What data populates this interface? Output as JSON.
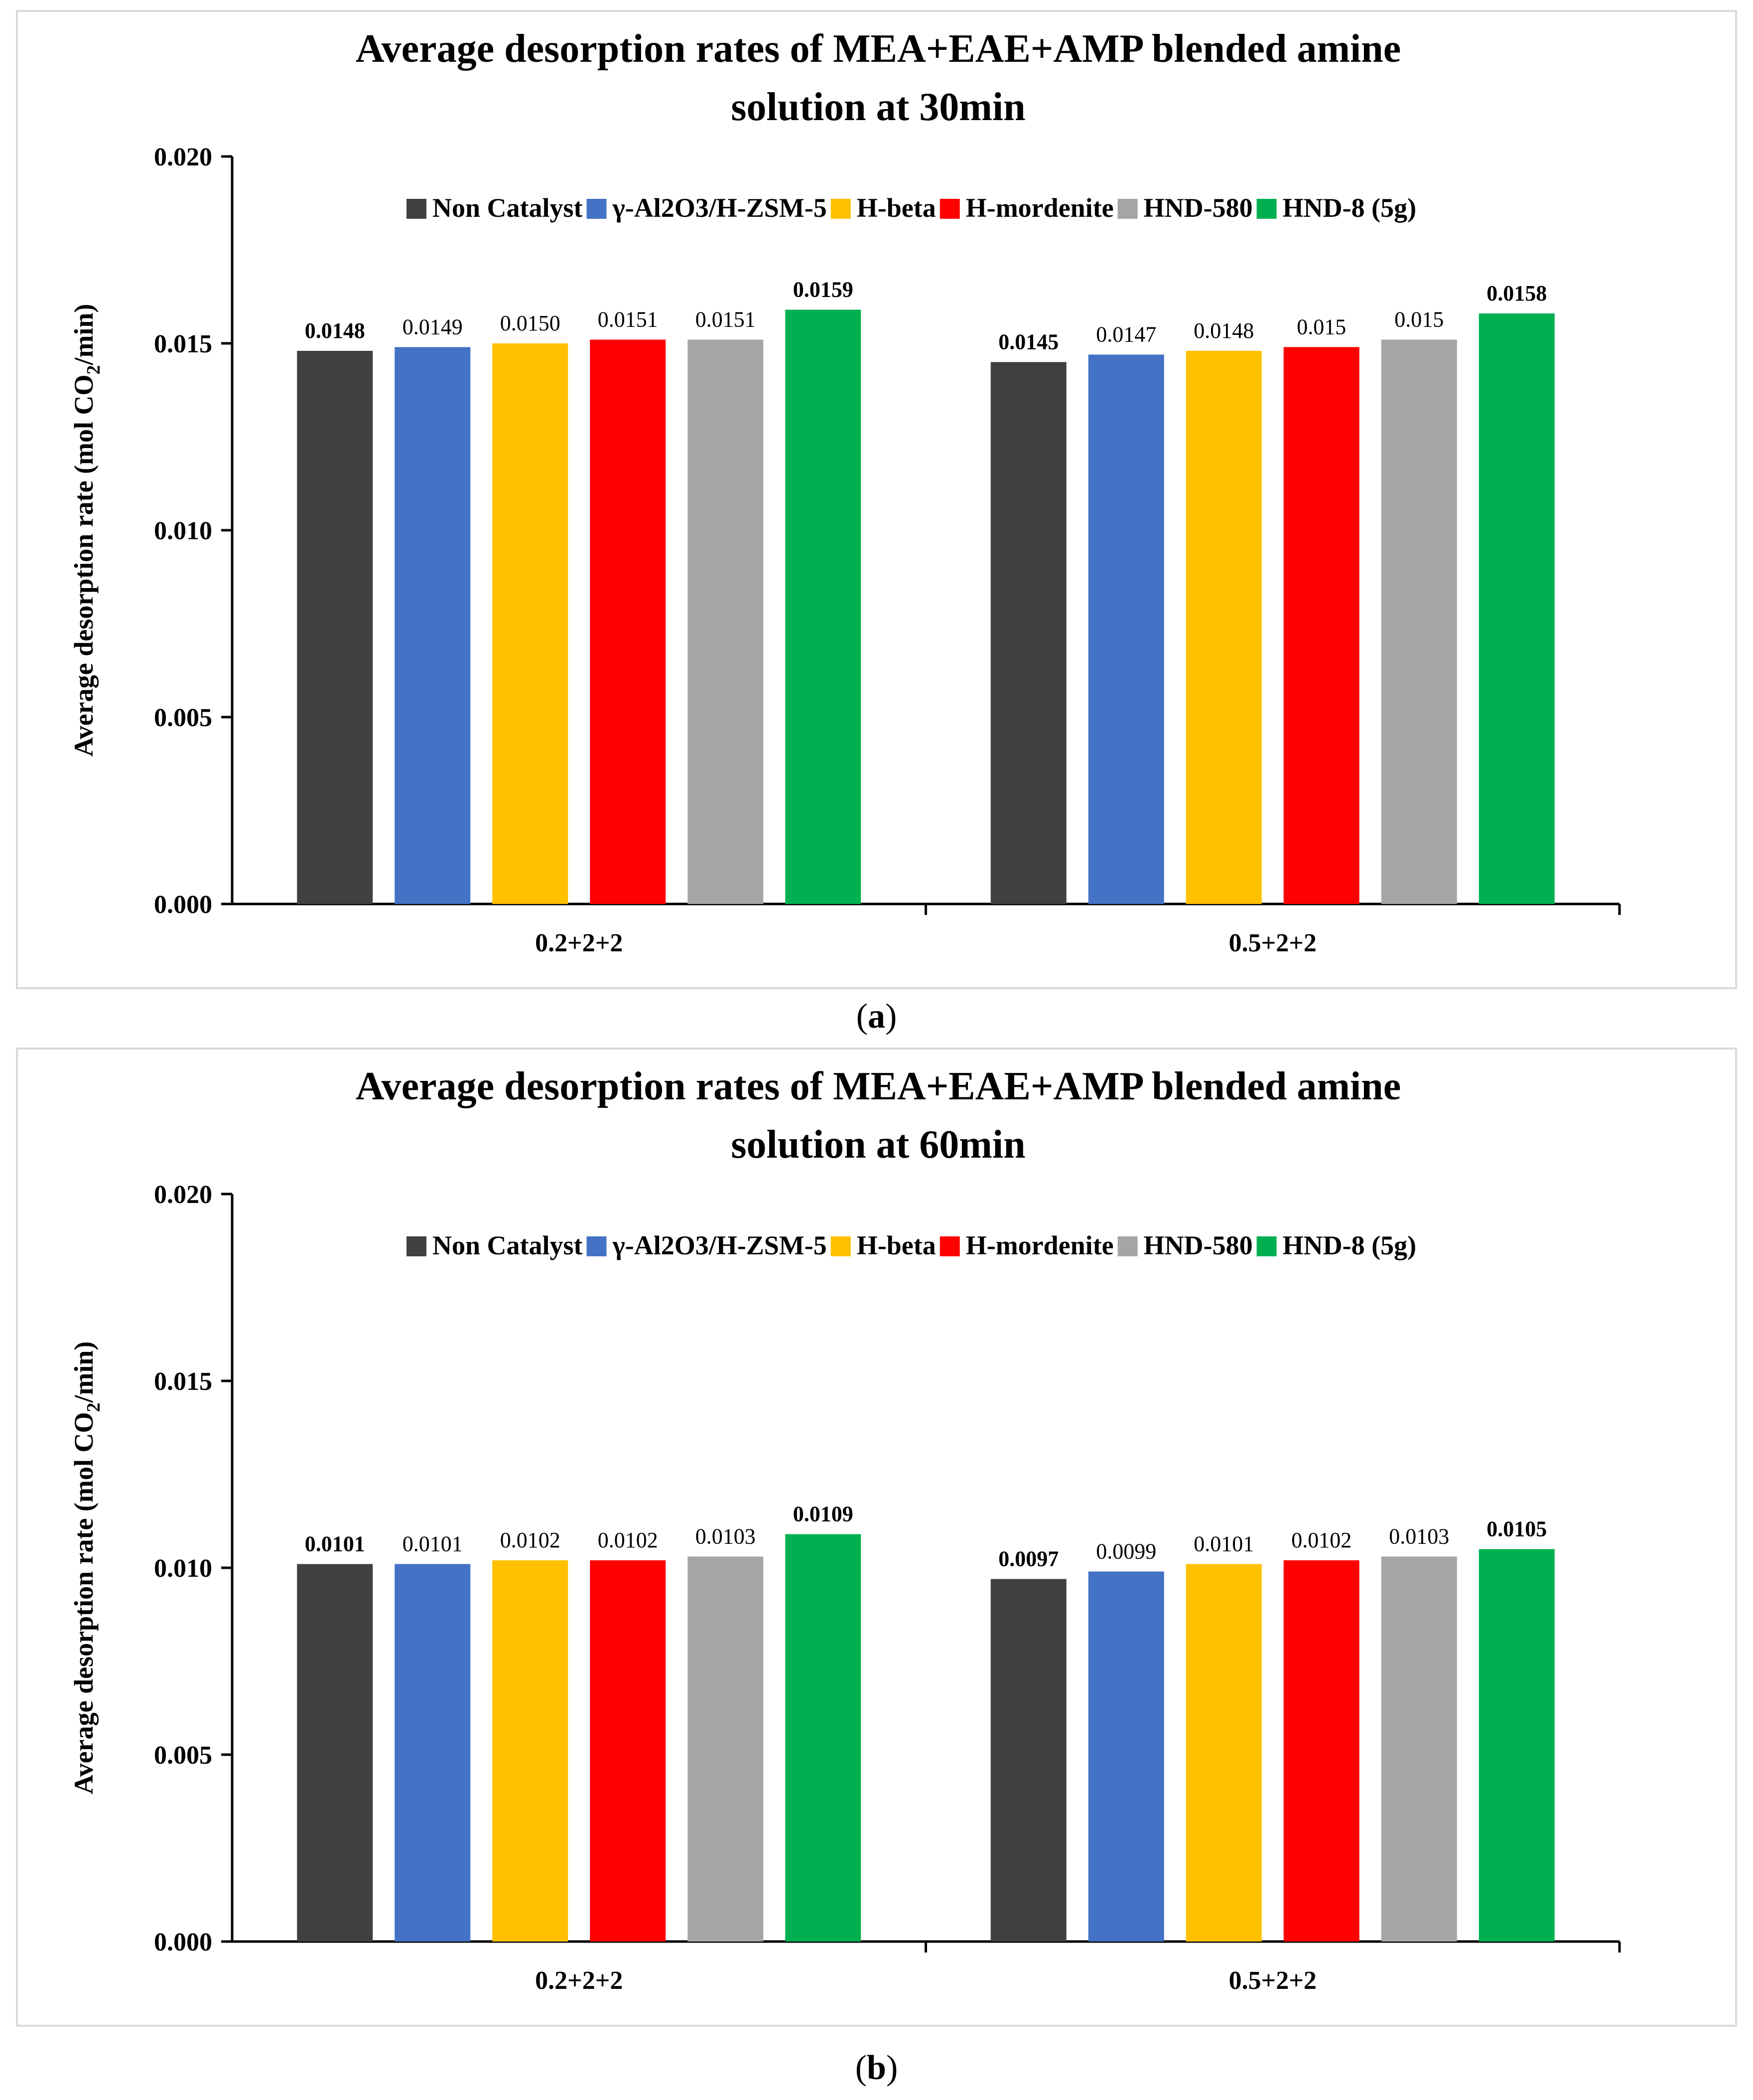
{
  "colors": {
    "non_catalyst": "#404040",
    "al2o3_hzsm5": "#4472c4",
    "h_beta": "#ffc000",
    "h_mordenite": "#ff0000",
    "hnd_580": "#a5a5a5",
    "hnd_8": "#00b050"
  },
  "chart_data": [
    {
      "type": "bar",
      "title_line1": "Average desorption rates of MEA+EAE+AMP blended amine",
      "title_line2": "solution at  30min",
      "xlabel": "",
      "ylabel": "Average desorption rate (mol CO",
      "ylabel_sub": "2",
      "ylabel_end": "/min)",
      "ylim": [
        0,
        0.02
      ],
      "yticks": [
        "0.000",
        "0.005",
        "0.010",
        "0.015",
        "0.020"
      ],
      "ytick_values": [
        0,
        0.005,
        0.01,
        0.015,
        0.02
      ],
      "legend_position": "top",
      "categories": [
        "0.2+2+2",
        "0.5+2+2"
      ],
      "series": [
        {
          "name": "Non Catalyst",
          "values": [
            0.0148,
            0.0145
          ],
          "labels": [
            "0.0148",
            "0.0145"
          ],
          "color": "#404040"
        },
        {
          "name": "γ-Al2O3/H-ZSM-5",
          "values": [
            0.0149,
            0.0147
          ],
          "labels": [
            "0.0149",
            "0.0147"
          ],
          "color": "#4472c4"
        },
        {
          "name": "H-beta",
          "values": [
            0.015,
            0.0148
          ],
          "labels": [
            "0.0150",
            "0.0148"
          ],
          "color": "#ffc000"
        },
        {
          "name": "H-mordenite",
          "values": [
            0.0151,
            0.0149
          ],
          "labels": [
            "0.0151",
            "0.015"
          ],
          "color": "#ff0000"
        },
        {
          "name": "HND-580",
          "values": [
            0.0151,
            0.0151
          ],
          "labels": [
            "0.0151",
            "0.015"
          ],
          "color": "#a5a5a5"
        },
        {
          "name": "HND-8 (5g)",
          "values": [
            0.0159,
            0.0158
          ],
          "labels": [
            "0.0159",
            "0.0158"
          ],
          "color": "#00b050"
        }
      ]
    },
    {
      "type": "bar",
      "title_line1": "Average desorption rates of MEA+EAE+AMP blended amine",
      "title_line2": "solution at  60min",
      "xlabel": "",
      "ylabel": "Average desorption rate (mol CO",
      "ylabel_sub": "2",
      "ylabel_end": "/min)",
      "ylim": [
        0,
        0.02
      ],
      "yticks": [
        "0.000",
        "0.005",
        "0.010",
        "0.015",
        "0.020"
      ],
      "ytick_values": [
        0,
        0.005,
        0.01,
        0.015,
        0.02
      ],
      "legend_position": "top",
      "categories": [
        "0.2+2+2",
        "0.5+2+2"
      ],
      "series": [
        {
          "name": "Non Catalyst",
          "values": [
            0.0101,
            0.0097
          ],
          "labels": [
            "0.0101",
            "0.0097"
          ],
          "color": "#404040"
        },
        {
          "name": "γ-Al2O3/H-ZSM-5",
          "values": [
            0.0101,
            0.0099
          ],
          "labels": [
            "0.0101",
            "0.0099"
          ],
          "color": "#4472c4"
        },
        {
          "name": "H-beta",
          "values": [
            0.0102,
            0.0101
          ],
          "labels": [
            "0.0102",
            "0.0101"
          ],
          "color": "#ffc000"
        },
        {
          "name": "H-mordenite",
          "values": [
            0.0102,
            0.0102
          ],
          "labels": [
            "0.0102",
            "0.0102"
          ],
          "color": "#ff0000"
        },
        {
          "name": "HND-580",
          "values": [
            0.0103,
            0.0103
          ],
          "labels": [
            "0.0103",
            "0.0103"
          ],
          "color": "#a5a5a5"
        },
        {
          "name": "HND-8 (5g)",
          "values": [
            0.0109,
            0.0105
          ],
          "labels": [
            "0.0109",
            "0.0105"
          ],
          "color": "#00b050"
        }
      ]
    }
  ],
  "captions": {
    "a": "a",
    "b": "b"
  }
}
